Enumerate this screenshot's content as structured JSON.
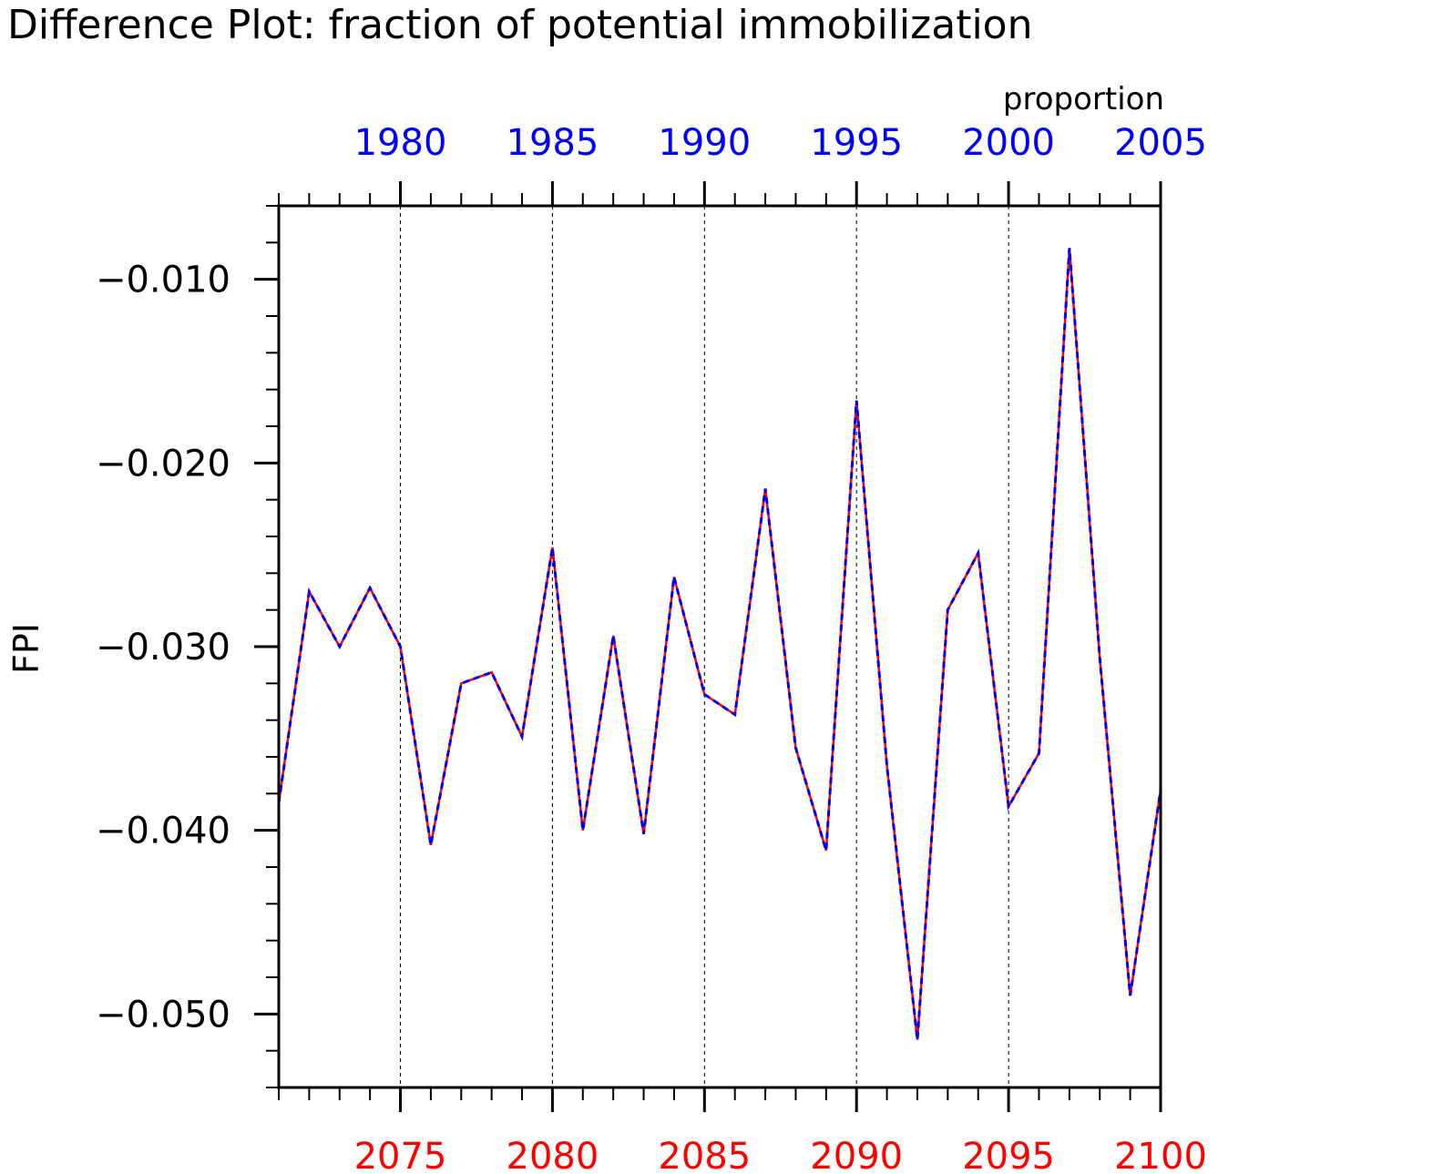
{
  "chart_data": {
    "type": "line",
    "title": "Difference Plot: fraction of potential immobilization",
    "subtitle": "proportion",
    "ylabel": "FPI",
    "ylim": [
      -0.054,
      -0.006
    ],
    "x_bottom": {
      "range": [
        2071,
        2100
      ],
      "ticks": [
        2075,
        2080,
        2085,
        2090,
        2095,
        2100
      ],
      "tick_labels": [
        "2075",
        "2080",
        "2085",
        "2090",
        "2095",
        "2100"
      ],
      "color": "#ff0000"
    },
    "x_top": {
      "range": [
        1976,
        2005
      ],
      "ticks": [
        1980,
        1985,
        1990,
        1995,
        2000,
        2005
      ],
      "tick_labels": [
        "1980",
        "1985",
        "1990",
        "1995",
        "2000",
        "2005"
      ],
      "color": "#0000ff"
    },
    "y_ticks": [
      -0.05,
      -0.04,
      -0.03,
      -0.02,
      -0.01
    ],
    "y_tick_labels": [
      "−0.050",
      "−0.040",
      "−0.030",
      "−0.020",
      "−0.010"
    ],
    "vertical_dashed_gridlines": true,
    "x": [
      2071,
      2072,
      2073,
      2074,
      2075,
      2076,
      2077,
      2078,
      2079,
      2080,
      2081,
      2082,
      2083,
      2084,
      2085,
      2086,
      2087,
      2088,
      2089,
      2090,
      2091,
      2092,
      2093,
      2094,
      2095,
      2096,
      2097,
      2098,
      2099,
      2100
    ],
    "series": [
      {
        "color": "#ff0000",
        "style": "solid",
        "values": [
          -0.0385,
          -0.027,
          -0.03,
          -0.0268,
          -0.03,
          -0.0408,
          -0.032,
          -0.0314,
          -0.0349,
          -0.0246,
          -0.04,
          -0.0294,
          -0.0402,
          -0.0262,
          -0.0326,
          -0.0337,
          -0.0214,
          -0.0355,
          -0.0411,
          -0.0166,
          -0.0365,
          -0.0514,
          -0.028,
          -0.0249,
          -0.0387,
          -0.0358,
          -0.0083,
          -0.0306,
          -0.049,
          -0.0378
        ]
      },
      {
        "color": "#0000ff",
        "style": "dashed",
        "values": [
          -0.0385,
          -0.027,
          -0.03,
          -0.0268,
          -0.03,
          -0.0408,
          -0.032,
          -0.0314,
          -0.0349,
          -0.0246,
          -0.04,
          -0.0294,
          -0.0402,
          -0.0262,
          -0.0326,
          -0.0337,
          -0.0214,
          -0.0355,
          -0.0411,
          -0.0166,
          -0.0365,
          -0.0514,
          -0.028,
          -0.0249,
          -0.0387,
          -0.0358,
          -0.0083,
          -0.0306,
          -0.049,
          -0.0378
        ]
      }
    ]
  }
}
